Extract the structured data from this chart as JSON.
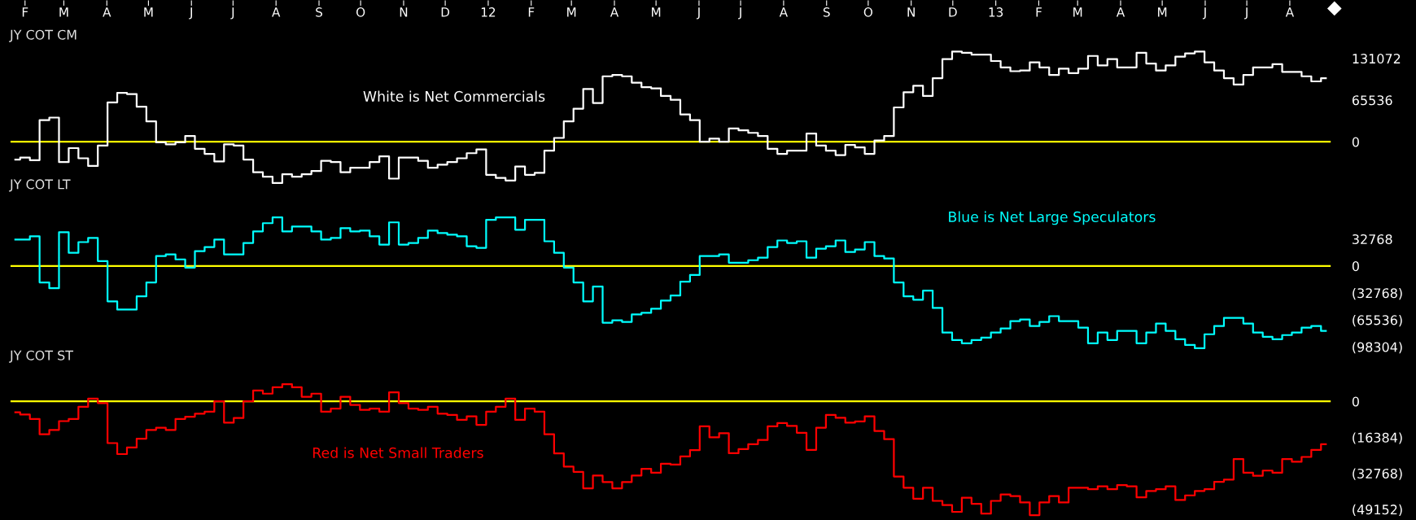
{
  "chart_data": [
    {
      "type": "step",
      "title": "JY COT CM",
      "annotations": [
        "White is Net Commercials"
      ],
      "x": [
        "2011-01-25",
        "2011-02-01",
        "2011-02-08",
        "2011-02-15",
        "2011-02-22",
        "2011-03-01",
        "2011-03-08",
        "2011-03-15",
        "2011-03-22",
        "2011-03-29",
        "2011-04-05",
        "2011-04-12",
        "2011-04-19",
        "2011-04-26",
        "2011-05-03",
        "2011-05-10",
        "2011-05-17",
        "2011-05-24",
        "2011-05-31",
        "2011-06-07",
        "2011-06-14",
        "2011-06-21",
        "2011-06-28",
        "2011-07-05",
        "2011-07-12",
        "2011-07-19",
        "2011-07-26",
        "2011-08-02",
        "2011-08-09",
        "2011-08-16",
        "2011-08-23",
        "2011-08-30",
        "2011-09-06",
        "2011-09-13",
        "2011-09-20",
        "2011-09-27",
        "2011-10-04",
        "2011-10-11",
        "2011-10-18",
        "2011-10-25",
        "2011-11-01",
        "2011-11-08",
        "2011-11-15",
        "2011-11-22",
        "2011-11-29",
        "2011-12-06",
        "2011-12-13",
        "2011-12-20",
        "2011-12-27",
        "2012-01-03",
        "2012-01-10",
        "2012-01-17",
        "2012-01-24",
        "2012-01-31",
        "2012-02-07",
        "2012-02-14",
        "2012-02-21",
        "2012-02-28",
        "2012-03-06",
        "2012-03-13",
        "2012-03-20",
        "2012-03-27",
        "2012-04-03",
        "2012-04-10",
        "2012-04-17",
        "2012-04-24",
        "2012-05-01",
        "2012-05-08",
        "2012-05-15",
        "2012-05-22",
        "2012-05-29",
        "2012-06-05",
        "2012-06-12",
        "2012-06-19",
        "2012-06-26",
        "2012-07-03",
        "2012-07-10",
        "2012-07-17",
        "2012-07-24",
        "2012-07-31",
        "2012-08-07",
        "2012-08-14",
        "2012-08-21",
        "2012-08-28",
        "2012-09-04",
        "2012-09-11",
        "2012-09-18",
        "2012-09-25",
        "2012-10-02",
        "2012-10-09",
        "2012-10-16",
        "2012-10-23",
        "2012-10-30",
        "2012-11-06",
        "2012-11-13",
        "2012-11-20",
        "2012-11-27",
        "2012-12-04",
        "2012-12-11",
        "2012-12-18",
        "2012-12-25",
        "2013-01-01",
        "2013-01-08",
        "2013-01-15",
        "2013-01-22",
        "2013-01-29",
        "2013-02-05",
        "2013-02-12",
        "2013-02-19",
        "2013-02-26",
        "2013-03-05",
        "2013-03-12",
        "2013-03-19",
        "2013-03-26",
        "2013-04-02",
        "2013-04-09",
        "2013-04-16",
        "2013-04-23",
        "2013-04-30",
        "2013-05-07",
        "2013-05-14",
        "2013-05-21",
        "2013-05-28",
        "2013-06-04",
        "2013-06-11",
        "2013-06-18",
        "2013-06-25",
        "2013-07-02",
        "2013-07-09",
        "2013-07-16",
        "2013-07-23",
        "2013-07-30",
        "2013-08-06",
        "2013-08-13",
        "2013-08-20",
        "2013-08-27"
      ],
      "series": [
        {
          "color": "#ffffff",
          "values": [
            -28000,
            -25000,
            -29000,
            34000,
            38000,
            -32000,
            -10000,
            -26000,
            -38000,
            -6000,
            62000,
            77000,
            75000,
            55000,
            32000,
            -1000,
            -4000,
            -1000,
            9000,
            -11000,
            -19000,
            -31000,
            -4000,
            -6000,
            -28000,
            -48000,
            -55000,
            -65000,
            -51000,
            -55000,
            -51000,
            -46000,
            -30000,
            -32000,
            -48000,
            -41000,
            -41000,
            -32000,
            -23000,
            -58000,
            -25000,
            -25000,
            -30000,
            -41000,
            -36000,
            -32000,
            -26000,
            -18000,
            -12000,
            -52000,
            -57000,
            -61000,
            -39000,
            -52000,
            -49000,
            -14000,
            6000,
            32000,
            52000,
            83000,
            61000,
            103000,
            105000,
            103000,
            93000,
            86000,
            84000,
            72000,
            66000,
            43000,
            34000,
            0,
            5000,
            0,
            21000,
            18000,
            14000,
            9000,
            -11000,
            -19000,
            -14000,
            -14000,
            13000,
            -6000,
            -14000,
            -21000,
            -5000,
            -9000,
            -19000,
            2000,
            9000,
            54000,
            78000,
            88000,
            72000,
            100000,
            130000,
            142000,
            140000,
            137000,
            137000,
            127000,
            117000,
            111000,
            112000,
            125000,
            117000,
            105000,
            115000,
            108000,
            115000,
            135000,
            120000,
            130000,
            117000,
            117000,
            140000,
            123000,
            112000,
            120000,
            134000,
            139000,
            142000,
            125000,
            112000,
            100000,
            90000,
            105000,
            117000,
            117000,
            122000,
            110000,
            110000,
            103000,
            95000,
            100000
          ]
        }
      ],
      "xlim": [
        "2011-01-21",
        "2013-10-31"
      ],
      "xticks": [
        {
          "value": "2011-02-01",
          "label": "F"
        },
        {
          "value": "2011-03-01",
          "label": "M"
        },
        {
          "value": "2011-04-01",
          "label": "A"
        },
        {
          "value": "2011-05-01",
          "label": "M"
        },
        {
          "value": "2011-06-01",
          "label": "J"
        },
        {
          "value": "2011-07-01",
          "label": "J"
        },
        {
          "value": "2011-08-01",
          "label": "A"
        },
        {
          "value": "2011-09-01",
          "label": "S"
        },
        {
          "value": "2011-10-01",
          "label": "O"
        },
        {
          "value": "2011-11-01",
          "label": "N"
        },
        {
          "value": "2011-12-01",
          "label": "D"
        },
        {
          "value": "2012-01-01",
          "label": "12"
        },
        {
          "value": "2012-02-01",
          "label": "F"
        },
        {
          "value": "2012-03-01",
          "label": "M"
        },
        {
          "value": "2012-04-01",
          "label": "A"
        },
        {
          "value": "2012-05-01",
          "label": "M"
        },
        {
          "value": "2012-06-01",
          "label": "J"
        },
        {
          "value": "2012-07-01",
          "label": "J"
        },
        {
          "value": "2012-08-01",
          "label": "A"
        },
        {
          "value": "2012-09-01",
          "label": "S"
        },
        {
          "value": "2012-10-01",
          "label": "O"
        },
        {
          "value": "2012-11-01",
          "label": "N"
        },
        {
          "value": "2012-12-01",
          "label": "D"
        },
        {
          "value": "2013-01-01",
          "label": "13"
        },
        {
          "value": "2013-02-01",
          "label": "F"
        },
        {
          "value": "2013-03-01",
          "label": "M"
        },
        {
          "value": "2013-04-01",
          "label": "A"
        },
        {
          "value": "2013-05-01",
          "label": "M"
        },
        {
          "value": "2013-06-01",
          "label": "J"
        },
        {
          "value": "2013-07-01",
          "label": "J"
        },
        {
          "value": "2013-08-01",
          "label": "A"
        }
      ],
      "ylim": [
        -74000,
        223000
      ],
      "yticks": [
        0,
        65536,
        131072
      ],
      "ref_lines": [
        {
          "axis": "y",
          "value": 0,
          "color": "#ffff00"
        }
      ]
    },
    {
      "type": "step",
      "title": "JY COT LT",
      "annotations": [
        "Blue is Net Large Speculators"
      ],
      "tick_labels": "y",
      "x": [
        "2011-01-25",
        "2011-02-01",
        "2011-02-08",
        "2011-02-15",
        "2011-02-22",
        "2011-03-01",
        "2011-03-08",
        "2011-03-15",
        "2011-03-22",
        "2011-03-29",
        "2011-04-05",
        "2011-04-12",
        "2011-04-19",
        "2011-04-26",
        "2011-05-03",
        "2011-05-10",
        "2011-05-17",
        "2011-05-24",
        "2011-05-31",
        "2011-06-07",
        "2011-06-14",
        "2011-06-21",
        "2011-06-28",
        "2011-07-05",
        "2011-07-12",
        "2011-07-19",
        "2011-07-26",
        "2011-08-02",
        "2011-08-09",
        "2011-08-16",
        "2011-08-23",
        "2011-08-30",
        "2011-09-06",
        "2011-09-13",
        "2011-09-20",
        "2011-09-27",
        "2011-10-04",
        "2011-10-11",
        "2011-10-18",
        "2011-10-25",
        "2011-11-01",
        "2011-11-08",
        "2011-11-15",
        "2011-11-22",
        "2011-11-29",
        "2011-12-06",
        "2011-12-13",
        "2011-12-20",
        "2011-12-27",
        "2012-01-03",
        "2012-01-10",
        "2012-01-17",
        "2012-01-24",
        "2012-01-31",
        "2012-02-07",
        "2012-02-14",
        "2012-02-21",
        "2012-02-28",
        "2012-03-06",
        "2012-03-13",
        "2012-03-20",
        "2012-03-27",
        "2012-04-03",
        "2012-04-10",
        "2012-04-17",
        "2012-04-24",
        "2012-05-01",
        "2012-05-08",
        "2012-05-15",
        "2012-05-22",
        "2012-05-29",
        "2012-06-05",
        "2012-06-12",
        "2012-06-19",
        "2012-06-26",
        "2012-07-03",
        "2012-07-10",
        "2012-07-17",
        "2012-07-24",
        "2012-07-31",
        "2012-08-07",
        "2012-08-14",
        "2012-08-21",
        "2012-08-28",
        "2012-09-04",
        "2012-09-11",
        "2012-09-18",
        "2012-09-25",
        "2012-10-02",
        "2012-10-09",
        "2012-10-16",
        "2012-10-23",
        "2012-10-30",
        "2012-11-06",
        "2012-11-13",
        "2012-11-20",
        "2012-11-27",
        "2012-12-04",
        "2012-12-11",
        "2012-12-18",
        "2012-12-25",
        "2013-01-01",
        "2013-01-08",
        "2013-01-15",
        "2013-01-22",
        "2013-01-29",
        "2013-02-05",
        "2013-02-12",
        "2013-02-19",
        "2013-02-26",
        "2013-03-05",
        "2013-03-12",
        "2013-03-19",
        "2013-03-26",
        "2013-04-02",
        "2013-04-09",
        "2013-04-16",
        "2013-04-23",
        "2013-04-30",
        "2013-05-07",
        "2013-05-14",
        "2013-05-21",
        "2013-05-28",
        "2013-06-04",
        "2013-06-11",
        "2013-06-18",
        "2013-06-25",
        "2013-07-02",
        "2013-07-09",
        "2013-07-16",
        "2013-07-23",
        "2013-07-30",
        "2013-08-06",
        "2013-08-13",
        "2013-08-20",
        "2013-08-27"
      ],
      "series": [
        {
          "color": "#00ffff",
          "values": [
            32000,
            32000,
            36000,
            -20000,
            -27000,
            41000,
            16000,
            29000,
            34000,
            6000,
            -43000,
            -53000,
            -53000,
            -37000,
            -20000,
            12000,
            14000,
            8000,
            -2000,
            18000,
            23000,
            32000,
            14000,
            14000,
            28000,
            42000,
            52000,
            59000,
            42000,
            48000,
            48000,
            42000,
            32000,
            34000,
            46000,
            42000,
            43000,
            36000,
            26000,
            53000,
            26000,
            28000,
            34000,
            43000,
            40000,
            38000,
            36000,
            24000,
            22000,
            56000,
            59000,
            59000,
            44000,
            56000,
            56000,
            30000,
            16000,
            -2000,
            -20000,
            -43000,
            -25000,
            -69000,
            -66000,
            -68000,
            -59000,
            -57000,
            -52000,
            -42000,
            -36000,
            -19000,
            -11000,
            12000,
            12000,
            14000,
            4000,
            4000,
            7000,
            10000,
            23000,
            31000,
            28000,
            30000,
            10000,
            21000,
            24000,
            31000,
            17000,
            20000,
            29000,
            12000,
            9000,
            -20000,
            -37000,
            -41000,
            -30000,
            -51000,
            -81000,
            -90000,
            -94000,
            -90000,
            -87000,
            -81000,
            -76000,
            -67000,
            -65000,
            -73000,
            -68000,
            -61000,
            -67000,
            -67000,
            -75000,
            -94000,
            -81000,
            -90000,
            -79000,
            -79000,
            -94000,
            -81000,
            -70000,
            -79000,
            -89000,
            -96000,
            -100000,
            -83000,
            -73000,
            -63000,
            -63000,
            -70000,
            -81000,
            -86000,
            -89000,
            -84000,
            -81000,
            -75000,
            -73000,
            -79000
          ]
        }
      ],
      "xlim": [
        "2011-01-21",
        "2013-10-31"
      ],
      "ylim": [
        -107000,
        76000
      ],
      "yticks": [
        32768,
        0,
        {
          "value": -32768,
          "label": "(32768)"
        },
        {
          "value": -65536,
          "label": "(65536)"
        },
        {
          "value": -98304,
          "label": "(98304)"
        }
      ],
      "ref_lines": [
        {
          "axis": "y",
          "value": 0,
          "color": "#ffff00"
        }
      ]
    },
    {
      "type": "step",
      "title": "JY COT ST",
      "annotations": [
        "Red is Net Small Traders"
      ],
      "tick_labels": "y",
      "x": [
        "2011-01-25",
        "2011-02-01",
        "2011-02-08",
        "2011-02-15",
        "2011-02-22",
        "2011-03-01",
        "2011-03-08",
        "2011-03-15",
        "2011-03-22",
        "2011-03-29",
        "2011-04-05",
        "2011-04-12",
        "2011-04-19",
        "2011-04-26",
        "2011-05-03",
        "2011-05-10",
        "2011-05-17",
        "2011-05-24",
        "2011-05-31",
        "2011-06-07",
        "2011-06-14",
        "2011-06-21",
        "2011-06-28",
        "2011-07-05",
        "2011-07-12",
        "2011-07-19",
        "2011-07-26",
        "2011-08-02",
        "2011-08-09",
        "2011-08-16",
        "2011-08-23",
        "2011-08-30",
        "2011-09-06",
        "2011-09-13",
        "2011-09-20",
        "2011-09-27",
        "2011-10-04",
        "2011-10-11",
        "2011-10-18",
        "2011-10-25",
        "2011-11-01",
        "2011-11-08",
        "2011-11-15",
        "2011-11-22",
        "2011-11-29",
        "2011-12-06",
        "2011-12-13",
        "2011-12-20",
        "2011-12-27",
        "2012-01-03",
        "2012-01-10",
        "2012-01-17",
        "2012-01-24",
        "2012-01-31",
        "2012-02-07",
        "2012-02-14",
        "2012-02-21",
        "2012-02-28",
        "2012-03-06",
        "2012-03-13",
        "2012-03-20",
        "2012-03-27",
        "2012-04-03",
        "2012-04-10",
        "2012-04-17",
        "2012-04-24",
        "2012-05-01",
        "2012-05-08",
        "2012-05-15",
        "2012-05-22",
        "2012-05-29",
        "2012-06-05",
        "2012-06-12",
        "2012-06-19",
        "2012-06-26",
        "2012-07-03",
        "2012-07-10",
        "2012-07-17",
        "2012-07-24",
        "2012-07-31",
        "2012-08-07",
        "2012-08-14",
        "2012-08-21",
        "2012-08-28",
        "2012-09-04",
        "2012-09-11",
        "2012-09-18",
        "2012-09-25",
        "2012-10-02",
        "2012-10-09",
        "2012-10-16",
        "2012-10-23",
        "2012-10-30",
        "2012-11-06",
        "2012-11-13",
        "2012-11-20",
        "2012-11-27",
        "2012-12-04",
        "2012-12-11",
        "2012-12-18",
        "2012-12-25",
        "2013-01-01",
        "2013-01-08",
        "2013-01-15",
        "2013-01-22",
        "2013-01-29",
        "2013-02-05",
        "2013-02-12",
        "2013-02-19",
        "2013-02-26",
        "2013-03-05",
        "2013-03-12",
        "2013-03-19",
        "2013-03-26",
        "2013-04-02",
        "2013-04-09",
        "2013-04-16",
        "2013-04-23",
        "2013-04-30",
        "2013-05-07",
        "2013-05-14",
        "2013-05-21",
        "2013-05-28",
        "2013-06-04",
        "2013-06-11",
        "2013-06-18",
        "2013-06-25",
        "2013-07-02",
        "2013-07-09",
        "2013-07-16",
        "2013-07-23",
        "2013-07-30",
        "2013-08-06",
        "2013-08-13",
        "2013-08-20",
        "2013-08-27"
      ],
      "series": [
        {
          "color": "#ff0000",
          "values": [
            -5000,
            -6000,
            -8000,
            -15000,
            -13000,
            -9000,
            -8000,
            -2500,
            1200,
            -800,
            -19000,
            -24000,
            -21000,
            -17000,
            -13000,
            -12000,
            -13000,
            -8000,
            -7000,
            -5600,
            -4700,
            0,
            -9700,
            -7600,
            0,
            4900,
            3500,
            6400,
            7800,
            6400,
            2100,
            3500,
            -4700,
            -3300,
            2100,
            -1600,
            -3900,
            -3300,
            -4700,
            4100,
            -800,
            -3300,
            -3900,
            -2500,
            -5600,
            -6200,
            -8400,
            -6800,
            -10700,
            -4700,
            -2500,
            1200,
            -8400,
            -3300,
            -4700,
            -15000,
            -23700,
            -29700,
            -32100,
            -39600,
            -33800,
            -36700,
            -39600,
            -36700,
            -33800,
            -30700,
            -32500,
            -28400,
            -28800,
            -25100,
            -22200,
            -11400,
            -16400,
            -14500,
            -23600,
            -21700,
            -19500,
            -17600,
            -11400,
            -9900,
            -11200,
            -14300,
            -22100,
            -12000,
            -6200,
            -7500,
            -9700,
            -9100,
            -6800,
            -13500,
            -17200,
            -34200,
            -39300,
            -44300,
            -39300,
            -45300,
            -47200,
            -50300,
            -43900,
            -46600,
            -51100,
            -45300,
            -42400,
            -43100,
            -46000,
            -51800,
            -46000,
            -43100,
            -46000,
            -39300,
            -39300,
            -40000,
            -38700,
            -40000,
            -38100,
            -38700,
            -43700,
            -40800,
            -40000,
            -38700,
            -44900,
            -42800,
            -40800,
            -40000,
            -36600,
            -35600,
            -26300,
            -32500,
            -33900,
            -31500,
            -32500,
            -26300,
            -27500,
            -25300,
            -22100,
            -19500
          ]
        }
      ],
      "xlim": [
        "2011-01-21",
        "2013-10-31"
      ],
      "ylim": [
        -54000,
        16000
      ],
      "yticks": [
        0,
        {
          "value": -16384,
          "label": "(16384)"
        },
        {
          "value": -32768,
          "label": "(32768)"
        },
        {
          "value": -49152,
          "label": "(49152)"
        }
      ],
      "ref_lines": [
        {
          "axis": "y",
          "value": 0,
          "color": "#ffff00"
        }
      ]
    }
  ]
}
